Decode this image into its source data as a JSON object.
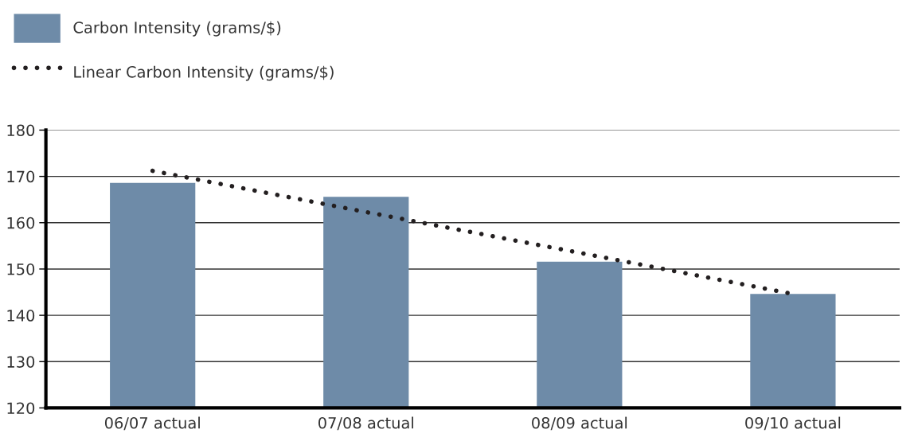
{
  "chart_data": {
    "type": "bar",
    "categories": [
      "06/07 actual",
      "07/08 actual",
      "08/09 actual",
      "09/10 actual"
    ],
    "series": [
      {
        "name": "Carbon Intensity (grams/$)",
        "color": "#6e8ba8",
        "values": [
          168.6,
          165.6,
          151.6,
          144.6
        ]
      },
      {
        "name": "Linear Carbon Intensity (grams/$)",
        "type": "line",
        "color": "#231f20",
        "line_style": "dotted",
        "values": [
          171.2,
          162.3,
          153.5,
          144.6
        ]
      }
    ],
    "ylim": [
      120,
      180
    ],
    "yticks": [
      120,
      130,
      140,
      150,
      160,
      170,
      180
    ],
    "grid": "y",
    "legend": "top left"
  }
}
